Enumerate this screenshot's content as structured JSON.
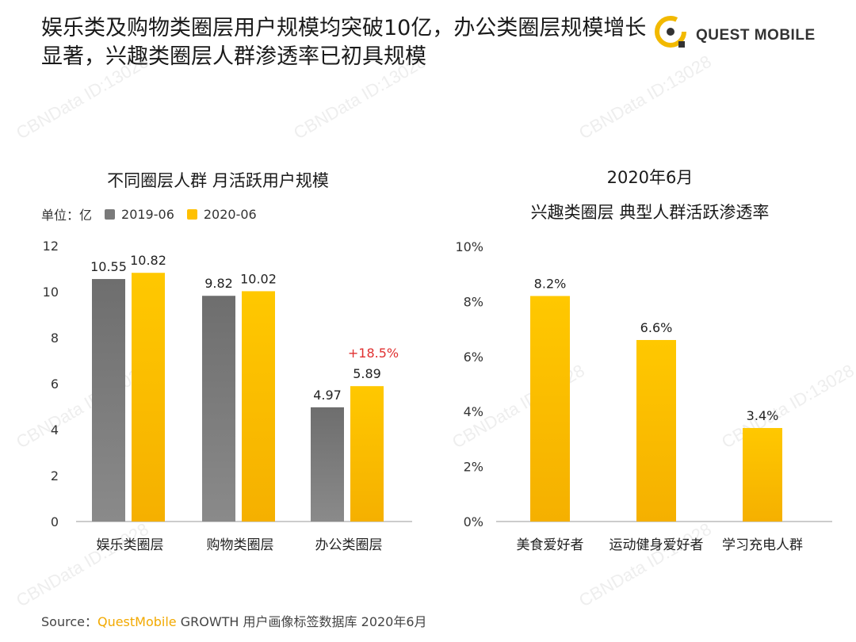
{
  "header": {
    "title": "娱乐类及购物类圈层用户规模均突破10亿，办公类圈层规模增长显著，兴趣类圈层人群渗透率已初具规模",
    "logo_text": "QUEST MOBILE"
  },
  "left_panel": {
    "title": "不同圈层人群 月活跃用户规模",
    "unit_label": "单位：亿",
    "growth_note": "+18.5%"
  },
  "right_panel": {
    "title_line1": "2020年6月",
    "title_line2": "兴趣类圈层 典型人群活跃渗透率"
  },
  "colors": {
    "gray": "#7a7a7a",
    "gold": "#ffc000",
    "growth": "#e03030",
    "axis": "#999999"
  },
  "chart_data": [
    {
      "type": "bar",
      "title": "不同圈层人群 月活跃用户规模",
      "categories": [
        "娱乐类圈层",
        "购物类圈层",
        "办公类圈层"
      ],
      "series": [
        {
          "name": "2019-06",
          "values": [
            10.55,
            9.82,
            4.97
          ]
        },
        {
          "name": "2020-06",
          "values": [
            10.82,
            10.02,
            5.89
          ]
        }
      ],
      "ylim": [
        0,
        12
      ],
      "yticks": [
        "0",
        "2",
        "4",
        "6",
        "8",
        "10",
        "12"
      ],
      "annotations": [
        "+18.5%"
      ],
      "grid": false,
      "legend": "top-left"
    },
    {
      "type": "bar",
      "title": "兴趣类圈层 典型人群活跃渗透率",
      "categories": [
        "美食爱好者",
        "运动健身爱好者",
        "学习充电人群"
      ],
      "values": [
        8.2,
        6.6,
        3.4
      ],
      "value_labels": [
        "8.2%",
        "6.6%",
        "3.4%"
      ],
      "ylim": [
        0,
        10
      ],
      "yticks": [
        "0%",
        "2%",
        "4%",
        "6%",
        "8%",
        "10%"
      ],
      "grid": false
    }
  ],
  "source": {
    "prefix": "Source：",
    "brand": "QuestMobile",
    "rest": " GROWTH 用户画像标签数据库 2020年6月"
  },
  "watermark_text": "CBNData ID:13028"
}
